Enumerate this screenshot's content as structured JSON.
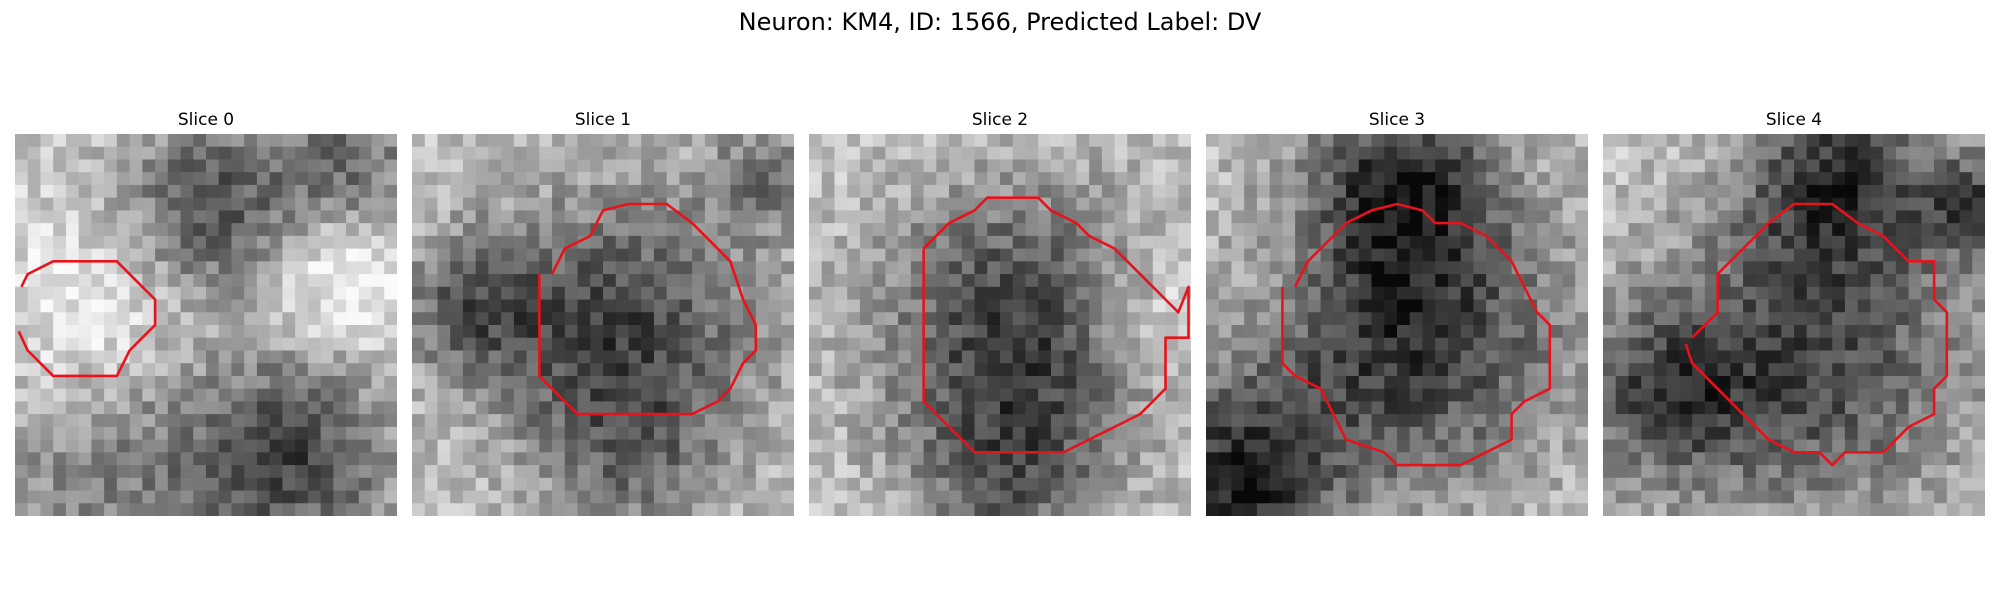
{
  "figure": {
    "title": "Neuron: KM4, ID: 1566, Predicted Label: DV",
    "contour_color": "#e8121b",
    "image_colormap": "grayscale"
  },
  "panels": [
    {
      "title": "Slice 0"
    },
    {
      "title": "Slice 1"
    },
    {
      "title": "Slice 2"
    },
    {
      "title": "Slice 3"
    },
    {
      "title": "Slice 4"
    }
  ]
}
